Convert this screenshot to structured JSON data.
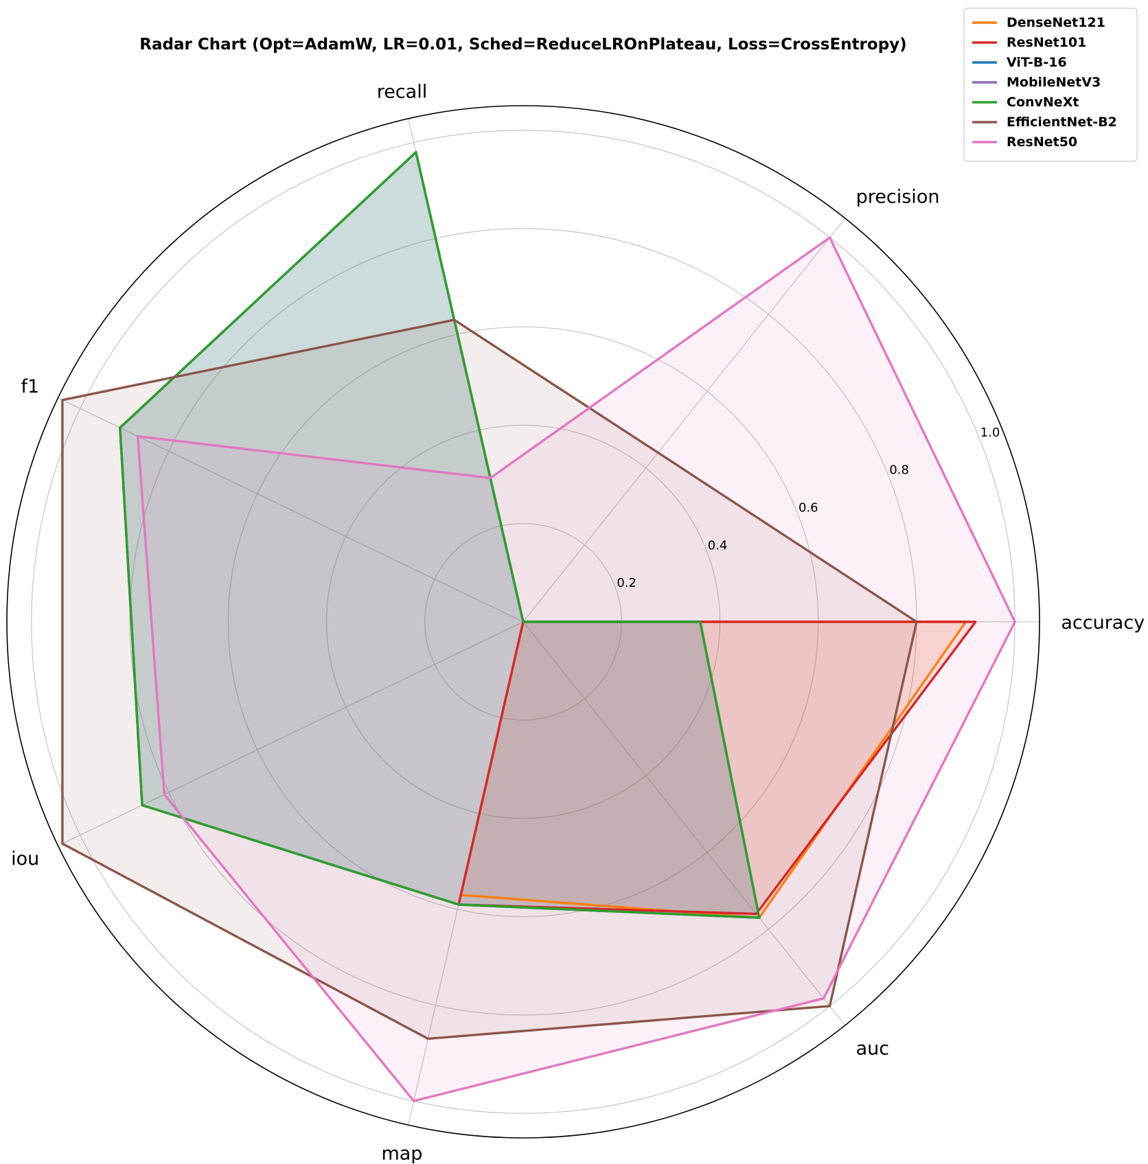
{
  "chart_data": {
    "type": "radar",
    "title": "Radar Chart (Opt=AdamW, LR=0.01, Sched=ReduceLROnPlateau, Loss=CrossEntropy)",
    "axes": [
      "accuracy",
      "precision",
      "recall",
      "f1",
      "iou",
      "map",
      "auc"
    ],
    "rlim": [
      0,
      1.05
    ],
    "rticks": [
      0.2,
      0.4,
      0.6,
      0.8,
      1.0
    ],
    "rtick_labels": [
      "0.2",
      "0.4",
      "0.6",
      "0.8",
      "1.0"
    ],
    "grid": true,
    "legend_position": "top-right",
    "series": [
      {
        "name": "DenseNet121",
        "color": "#ff7f0e",
        "values": [
          0.9,
          0.0,
          0.0,
          0.0,
          0.0,
          0.57,
          0.77
        ]
      },
      {
        "name": "ResNet101",
        "color": "#d62728",
        "values": [
          0.92,
          0.0,
          0.0,
          0.0,
          0.0,
          0.59,
          0.76
        ]
      },
      {
        "name": "ViT-B-16",
        "color": "#1f77b4",
        "values": [
          0.36,
          0.0,
          0.98,
          0.91,
          0.86,
          0.59,
          0.77
        ]
      },
      {
        "name": "MobileNetV3",
        "color": "#9467bd",
        "values": [
          0.36,
          0.0,
          0.98,
          0.91,
          0.86,
          0.59,
          0.77
        ]
      },
      {
        "name": "ConvNeXt",
        "color": "#2ca02c",
        "values": [
          0.36,
          0.0,
          0.98,
          0.91,
          0.86,
          0.59,
          0.77
        ]
      },
      {
        "name": "EfficientNet-B2",
        "color": "#8c564b",
        "values": [
          0.8,
          0.44,
          0.63,
          1.04,
          1.04,
          0.87,
          1.0
        ]
      },
      {
        "name": "ResNet50",
        "color": "#e377c2",
        "values": [
          1.0,
          1.0,
          0.3,
          0.87,
          0.81,
          1.0,
          0.98
        ]
      }
    ]
  }
}
